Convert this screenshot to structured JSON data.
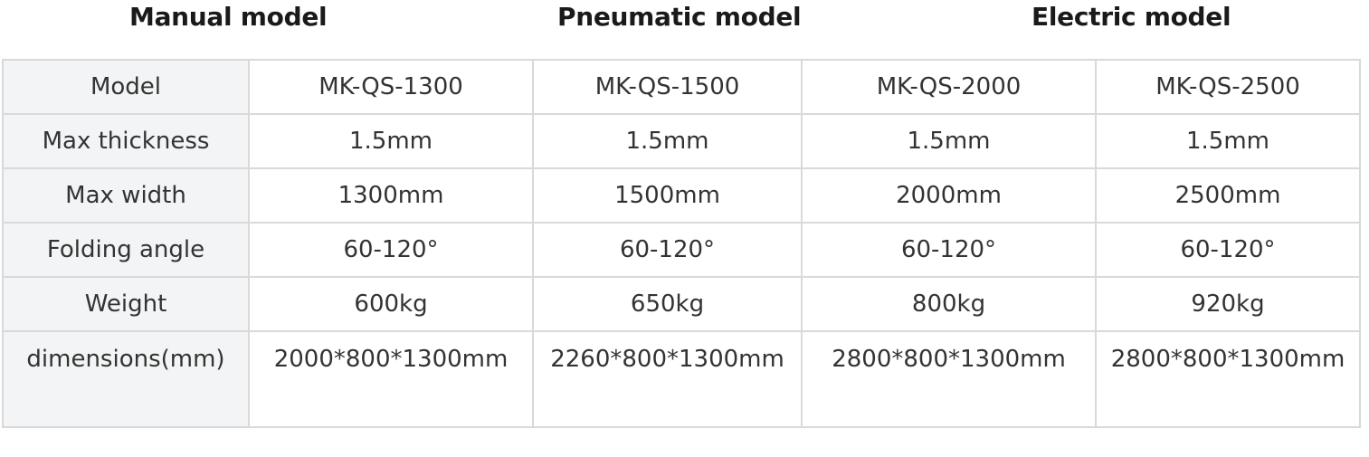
{
  "headings": [
    "Manual model",
    "Pneumatic model",
    "Electric model"
  ],
  "table": {
    "rows": [
      {
        "label": "Model",
        "values": [
          "MK-QS-1300",
          "MK-QS-1500",
          "MK-QS-2000",
          "MK-QS-2500"
        ]
      },
      {
        "label": "Max thickness",
        "values": [
          "1.5mm",
          "1.5mm",
          "1.5mm",
          "1.5mm"
        ]
      },
      {
        "label": "Max width",
        "values": [
          "1300mm",
          "1500mm",
          "2000mm",
          "2500mm"
        ]
      },
      {
        "label": "Folding angle",
        "values": [
          "60-120°",
          "60-120°",
          "60-120°",
          "60-120°"
        ]
      },
      {
        "label": "Weight",
        "values": [
          "600kg",
          "650kg",
          "800kg",
          "920kg"
        ]
      },
      {
        "label": "dimensions(mm)",
        "values": [
          "2000*800*1300mm",
          "2260*800*1300mm",
          "2800*800*1300mm",
          "2800*800*1300mm"
        ]
      }
    ]
  }
}
